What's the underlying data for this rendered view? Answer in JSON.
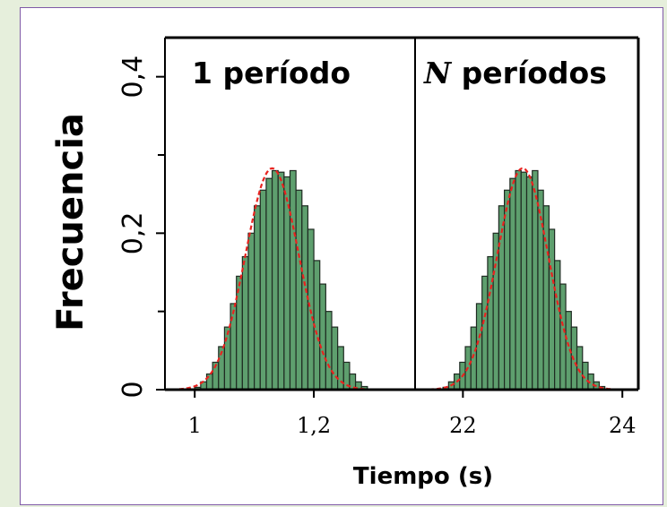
{
  "chart_data": {
    "type": "bar",
    "title_style": "histograms with fitted normal curve",
    "ylabel": "Frecuencia",
    "xlabel": "Tiempo (s)",
    "ylim": [
      0,
      0.45
    ],
    "yticks": [
      "0",
      "0,2",
      "0,4"
    ],
    "ytick_values": [
      0,
      0.2,
      0.4
    ],
    "colors": {
      "bar_fill": "#5e9f6e",
      "bar_edge": "#1f2b22",
      "fit_curve": "#e8231f",
      "axes": "#000000",
      "frame": "#7f5aa6",
      "page_background": "#e6efdc"
    },
    "panels": [
      {
        "title_prefix": "",
        "title": "1 período",
        "xlim": [
          0.95,
          1.37
        ],
        "xticks": [
          "1",
          "1,2"
        ],
        "xtick_values": [
          1.0,
          1.2
        ],
        "fit": {
          "mean": 1.13,
          "sd": 0.045,
          "peak": 0.283
        },
        "bins": {
          "start": 1.0,
          "width": 0.01
        },
        "values": [
          0.003,
          0.01,
          0.02,
          0.035,
          0.055,
          0.08,
          0.11,
          0.145,
          0.17,
          0.2,
          0.235,
          0.255,
          0.27,
          0.28,
          0.278,
          0.272,
          0.28,
          0.255,
          0.235,
          0.205,
          0.165,
          0.135,
          0.1,
          0.08,
          0.055,
          0.035,
          0.02,
          0.01,
          0.004
        ]
      },
      {
        "title_prefix": "N",
        "title": " períodos",
        "xlim": [
          21.4,
          24.2
        ],
        "xticks": [
          "22",
          "24"
        ],
        "xtick_values": [
          22.0,
          24.0
        ],
        "fit": {
          "mean": 22.75,
          "sd": 0.32,
          "peak": 0.283
        },
        "bins": {
          "start": 21.75,
          "width": 0.07
        },
        "values": [
          0.003,
          0.01,
          0.02,
          0.035,
          0.055,
          0.08,
          0.11,
          0.145,
          0.17,
          0.2,
          0.235,
          0.255,
          0.27,
          0.28,
          0.278,
          0.272,
          0.28,
          0.255,
          0.235,
          0.205,
          0.165,
          0.135,
          0.1,
          0.08,
          0.055,
          0.035,
          0.02,
          0.01,
          0.004
        ]
      }
    ]
  }
}
